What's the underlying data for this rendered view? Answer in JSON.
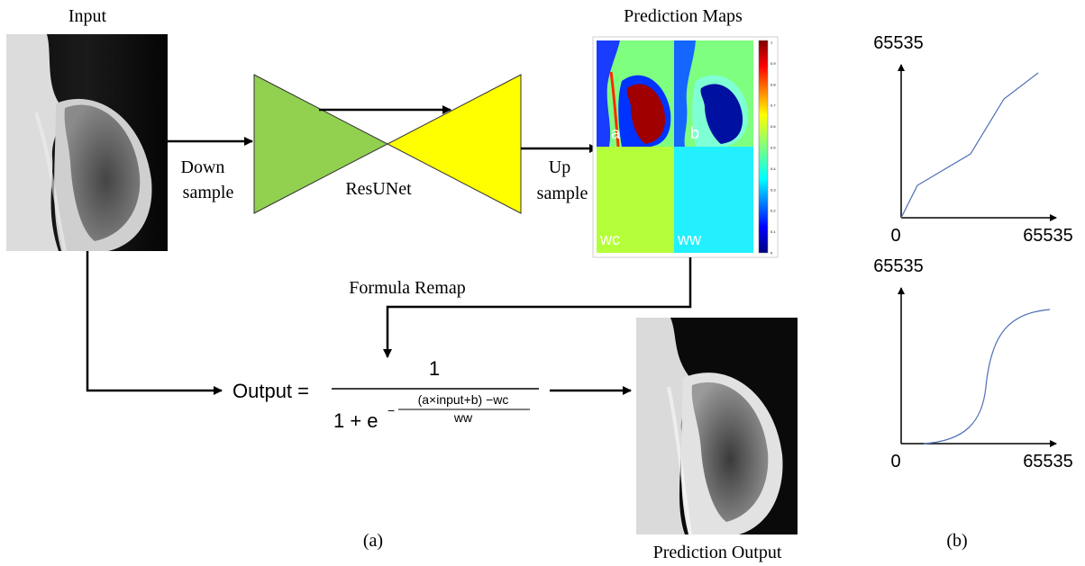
{
  "panel_a": {
    "input_label": "Input",
    "down_label_1": "Down",
    "down_label_2": "sample",
    "network_label": "ResUNet",
    "up_label_1": "Up",
    "up_label_2": "sample",
    "prediction_maps_title": "Prediction Maps",
    "map_labels": [
      "a",
      "b",
      "wc",
      "ww"
    ],
    "colorbar_ticks": [
      "1",
      "0.9",
      "0.8",
      "0.7",
      "0.6",
      "0.5",
      "0.4",
      "0.3",
      "0.2",
      "0.1",
      "0"
    ],
    "remap_label": "Formula Remap",
    "formula": {
      "lhs": "Output =",
      "numerator": "1",
      "denominator_base": "1 + e",
      "exponent_sign": "−",
      "exponent_numerator": "(a×input+b) −wc",
      "exponent_denominator": "ww"
    },
    "output_label": "Prediction Output",
    "caption": "(a)"
  },
  "panel_b": {
    "caption": "(b)",
    "top_chart": {
      "y_max_label": "65535",
      "origin_label": "0",
      "x_max_label": "65535"
    },
    "bottom_chart": {
      "y_max_label": "65535",
      "origin_label": "0",
      "x_max_label": "65535"
    }
  },
  "colors": {
    "encoder_triangle": "#92d050",
    "decoder_triangle": "#ffff00",
    "curve": "#4f6fb5",
    "arrow": "#000000"
  }
}
